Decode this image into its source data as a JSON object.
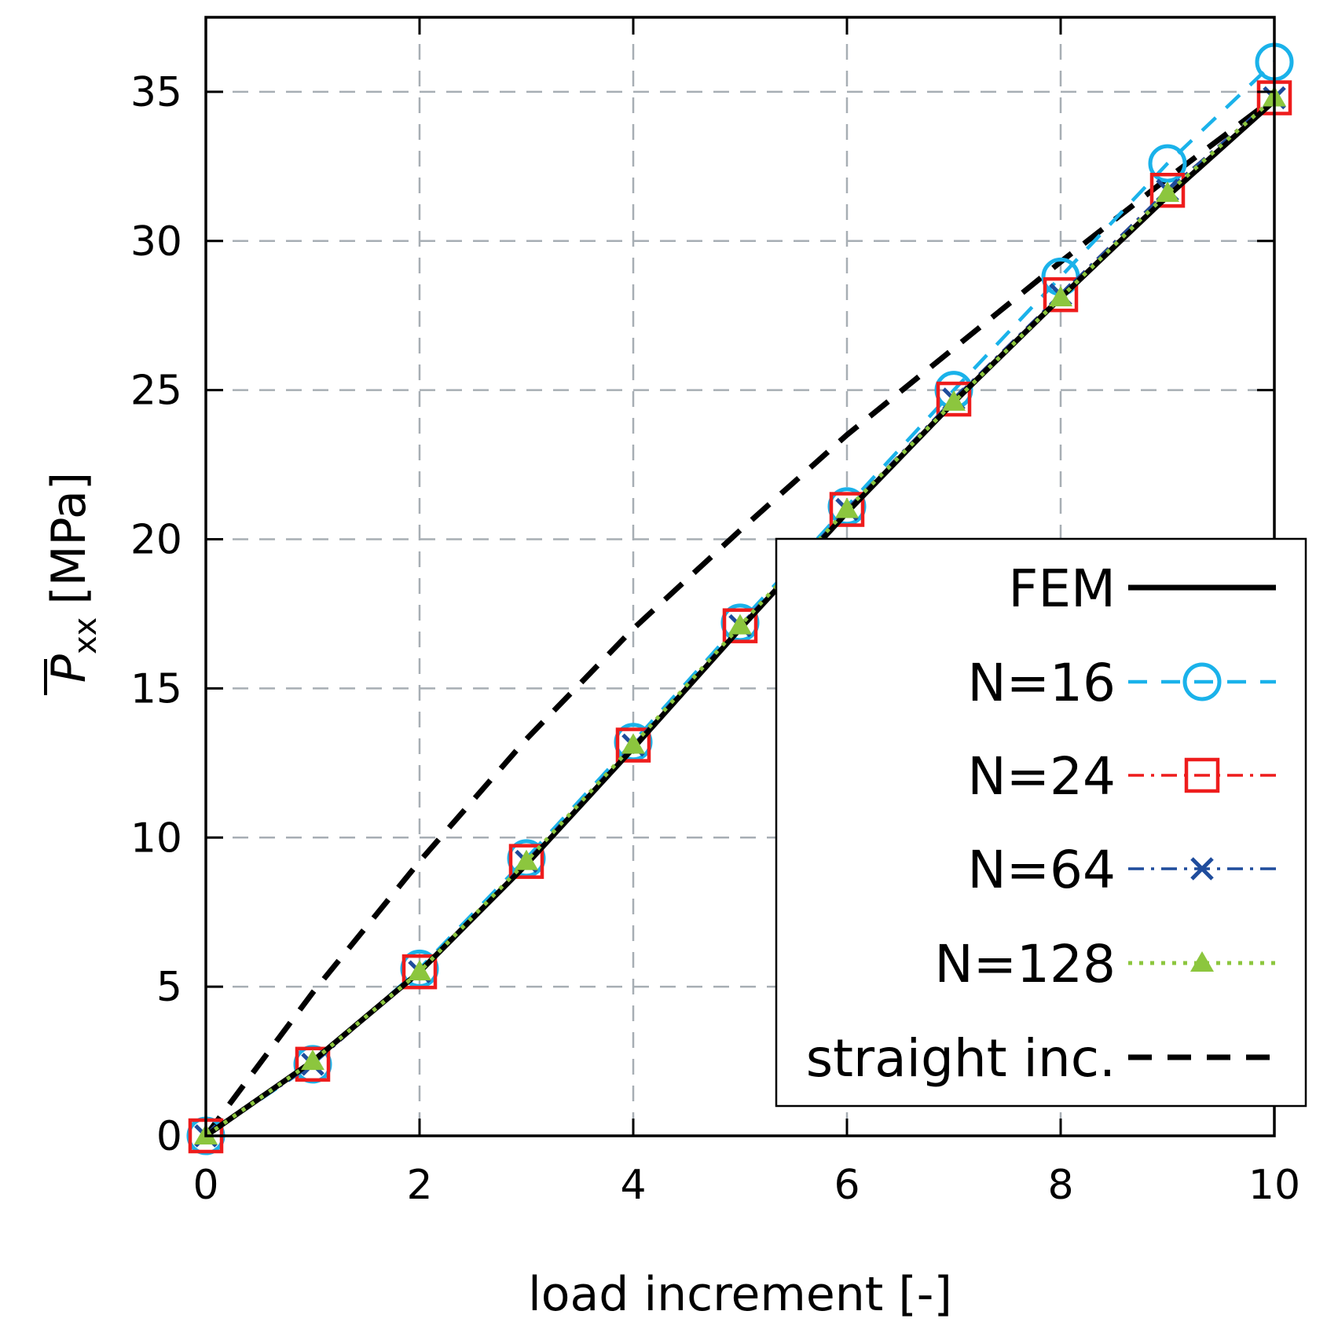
{
  "chart_data": {
    "type": "line",
    "xlabel": "load increment [-]",
    "ylabel_symbol": "P",
    "ylabel_subscript": "xx",
    "ylabel_unit": "[MPa]",
    "xlim": [
      0,
      10
    ],
    "ylim": [
      0,
      37.5
    ],
    "xticks": [
      0,
      2,
      4,
      6,
      8,
      10
    ],
    "yticks": [
      0,
      5,
      10,
      15,
      20,
      25,
      30,
      35
    ],
    "grid": true,
    "legend_position": "bottom-right",
    "x": [
      0,
      1,
      2,
      3,
      4,
      5,
      6,
      7,
      8,
      9,
      10
    ],
    "series": [
      {
        "name": "FEM",
        "color": "#000000",
        "style": "solid",
        "marker": "none",
        "values": [
          0,
          2.5,
          5.5,
          9.1,
          13.0,
          17.0,
          20.9,
          24.6,
          28.1,
          31.5,
          34.7
        ]
      },
      {
        "name": "N=16",
        "color": "#1ab2ea",
        "style": "dashed",
        "marker": "circle",
        "values": [
          0,
          2.4,
          5.6,
          9.3,
          13.2,
          17.2,
          21.1,
          25.0,
          28.8,
          32.6,
          36.0
        ]
      },
      {
        "name": "N=24",
        "color": "#ee1c1c",
        "style": "dashdot",
        "marker": "square",
        "values": [
          0,
          2.4,
          5.5,
          9.2,
          13.1,
          17.1,
          21.0,
          24.7,
          28.2,
          31.7,
          34.8
        ]
      },
      {
        "name": "N=64",
        "color": "#1f4c9c",
        "style": "dashdot",
        "marker": "x",
        "values": [
          0,
          2.4,
          5.5,
          9.2,
          13.1,
          17.1,
          21.0,
          24.7,
          28.2,
          31.7,
          34.8
        ]
      },
      {
        "name": "N=128",
        "color": "#8cc63e",
        "style": "dotted",
        "marker": "triangle",
        "values": [
          0,
          2.5,
          5.5,
          9.2,
          13.1,
          17.1,
          21.0,
          24.6,
          28.1,
          31.6,
          34.8
        ]
      },
      {
        "name": "straight inc.",
        "color": "#000000",
        "style": "longdash",
        "marker": "none",
        "values": [
          0,
          4.8,
          9.2,
          13.3,
          17.0,
          20.3,
          23.5,
          26.4,
          29.3,
          32.1,
          34.8
        ]
      }
    ]
  }
}
